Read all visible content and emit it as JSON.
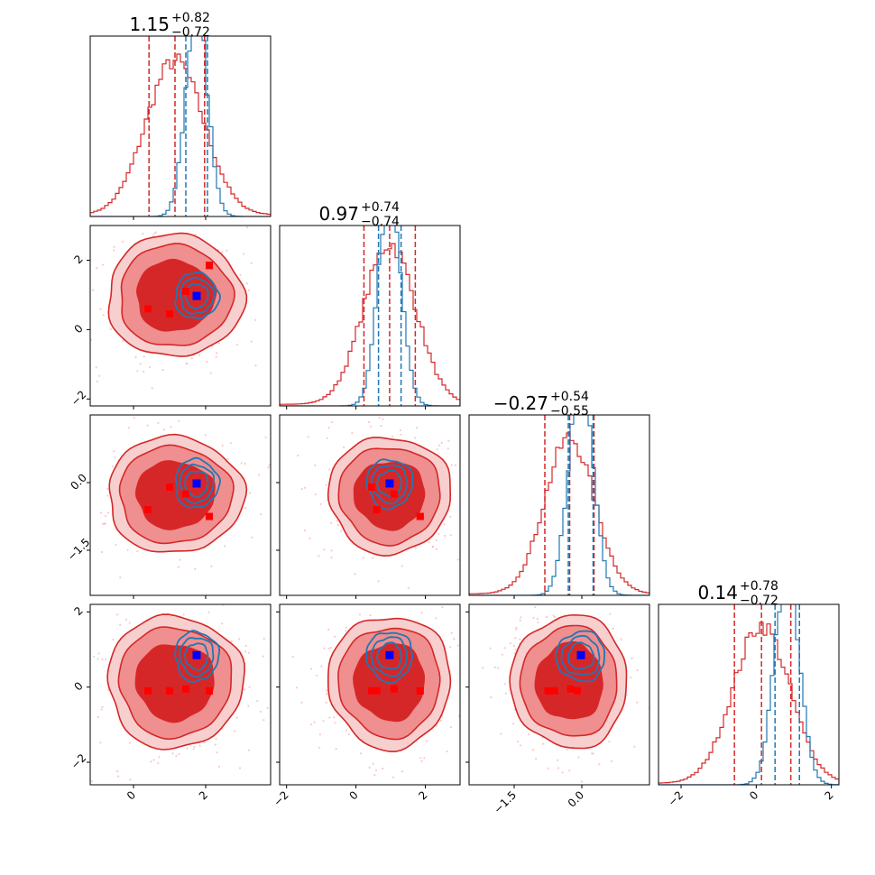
{
  "chart_data": {
    "type": "corner",
    "parameters": [
      {
        "range": [
          -1.2,
          3.8
        ],
        "ticks": [
          0,
          2
        ],
        "tick_labels": [
          "0",
          "2"
        ],
        "title": {
          "value": "1.15",
          "plus": "+0.82",
          "minus": "−0.72"
        },
        "quantiles_red": [
          0.43,
          1.15,
          1.97
        ],
        "quantiles_blue": [
          1.45,
          2.05
        ],
        "red_peak": 1.15,
        "red_sigma": 0.8,
        "blue_peak": 1.75,
        "blue_sigma": 0.3
      },
      {
        "range": [
          -2.2,
          3.0
        ],
        "ticks": [
          -2,
          0,
          2
        ],
        "tick_labels": [
          "−2",
          "0",
          "2"
        ],
        "title": {
          "value": "0.97",
          "plus": "+0.74",
          "minus": "−0.74"
        },
        "quantiles_red": [
          0.23,
          0.97,
          1.71
        ],
        "quantiles_blue": [
          0.65,
          1.3
        ],
        "red_peak": 0.97,
        "red_sigma": 0.75,
        "blue_peak": 0.97,
        "blue_sigma": 0.33
      },
      {
        "range": [
          -2.5,
          1.5
        ],
        "ticks": [
          -1.5,
          0.0
        ],
        "tick_labels": [
          "−1.5",
          "0.0"
        ],
        "title": {
          "value": "−0.27",
          "plus": "+0.54",
          "minus": "−0.55"
        },
        "quantiles_red": [
          -0.82,
          -0.27,
          0.27
        ],
        "quantiles_blue": [
          -0.3,
          0.25
        ],
        "red_peak": -0.27,
        "red_sigma": 0.55,
        "blue_peak": -0.02,
        "blue_sigma": 0.27
      },
      {
        "range": [
          -2.6,
          2.2
        ],
        "ticks": [
          -2,
          0,
          2
        ],
        "tick_labels": [
          "−2",
          "0",
          "2"
        ],
        "title": {
          "value": "0.14",
          "plus": "+0.78",
          "minus": "−0.72"
        },
        "quantiles_red": [
          -0.58,
          0.14,
          0.92
        ],
        "quantiles_blue": [
          0.5,
          1.15
        ],
        "red_peak": 0.14,
        "red_sigma": 0.75,
        "blue_peak": 0.82,
        "blue_sigma": 0.33
      }
    ],
    "red_markers": [
      [
        0.4,
        0.6,
        -0.6,
        -0.1
      ],
      [
        1.0,
        0.45,
        -0.1,
        -0.1
      ],
      [
        1.45,
        1.1,
        -0.25,
        -0.05
      ],
      [
        2.1,
        1.85,
        -0.75,
        -0.1
      ],
      [
        2.1,
        1.85,
        -0.75,
        -0.1
      ]
    ],
    "blue_marker": [
      1.75,
      0.97,
      -0.02,
      0.85
    ],
    "colors": {
      "red": "#d62728",
      "blue": "#1f77b4",
      "marker_red": "#ff0000",
      "marker_blue": "#0000ff"
    }
  }
}
